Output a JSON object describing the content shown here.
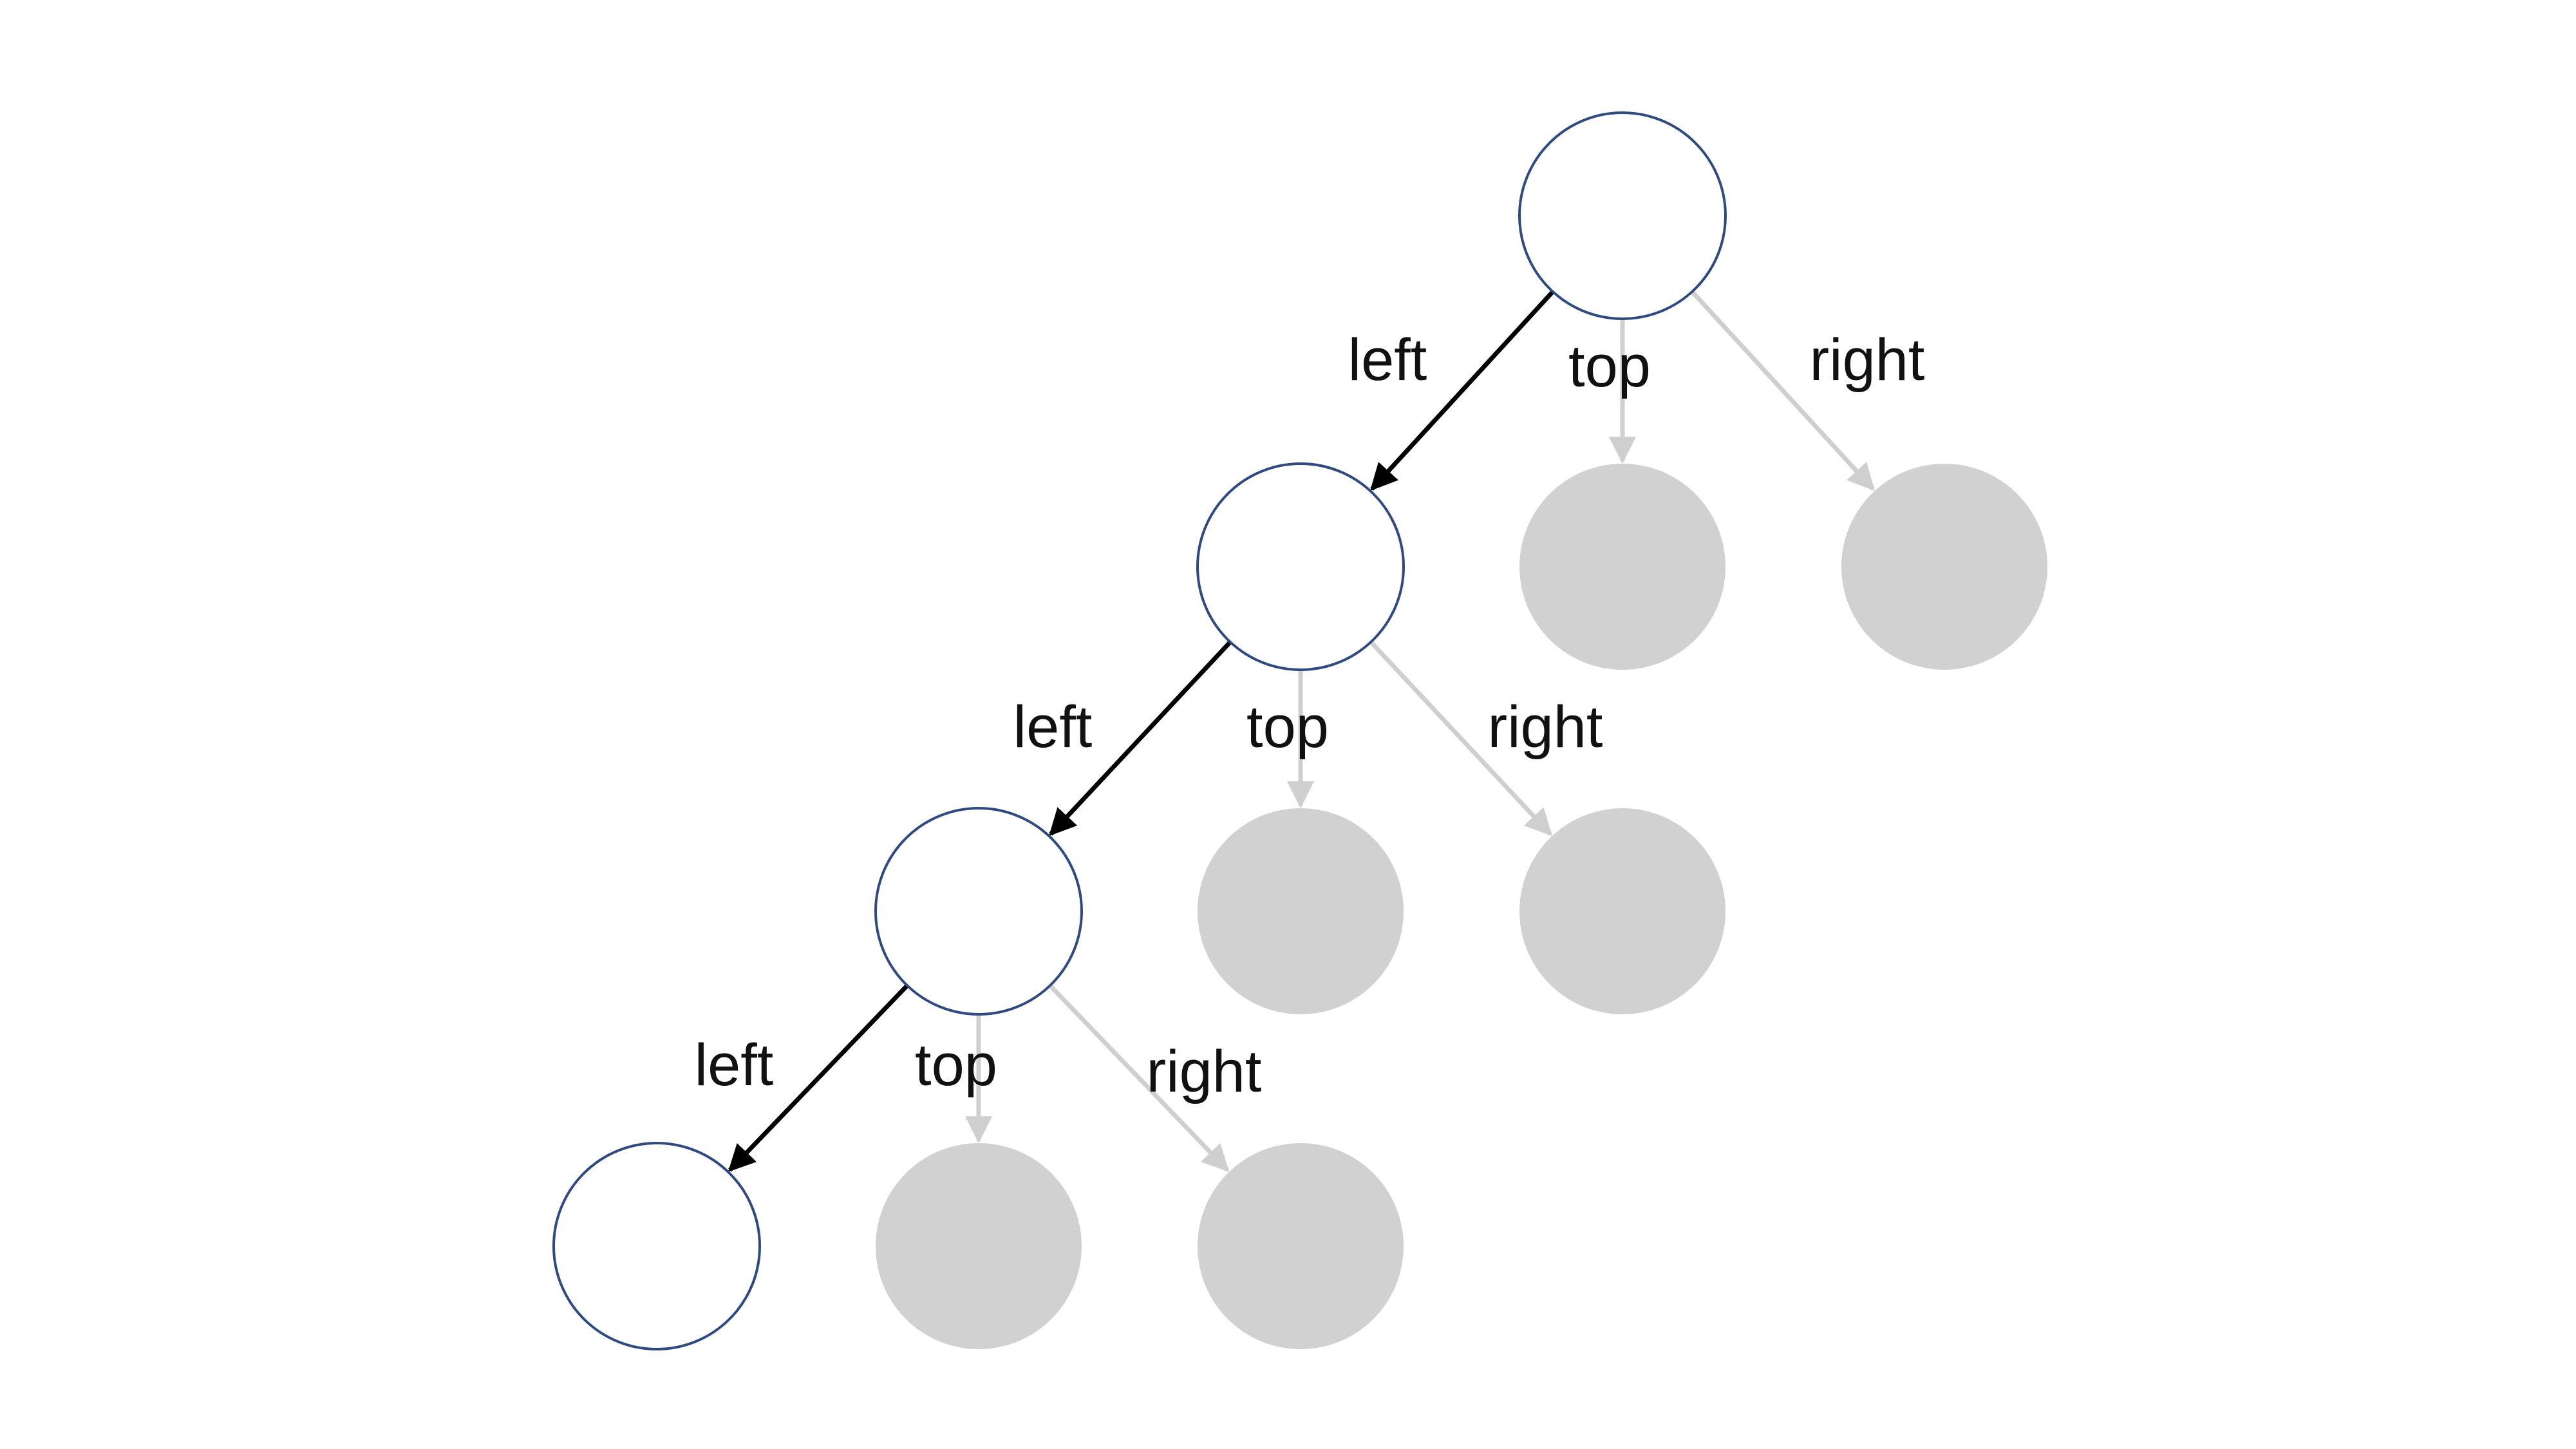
{
  "diagram": {
    "type": "search-tree",
    "colors": {
      "background": "#ffffff",
      "active_node_stroke": "#2f4a80",
      "active_node_fill": "#ffffff",
      "inactive_node_fill": "#d2d1d2",
      "active_edge": "#000000",
      "inactive_edge": "#cfcfcf",
      "label_text": "#111111"
    },
    "nodes": [
      {
        "id": "n0",
        "state": "active"
      },
      {
        "id": "n1",
        "state": "active"
      },
      {
        "id": "n2",
        "state": "inactive"
      },
      {
        "id": "n3",
        "state": "inactive"
      },
      {
        "id": "n4",
        "state": "active"
      },
      {
        "id": "n5",
        "state": "inactive"
      },
      {
        "id": "n6",
        "state": "inactive"
      },
      {
        "id": "n7",
        "state": "active"
      },
      {
        "id": "n8",
        "state": "inactive"
      },
      {
        "id": "n9",
        "state": "inactive"
      }
    ],
    "edges": [
      {
        "from": "n0",
        "to": "n1",
        "label": "left",
        "state": "active"
      },
      {
        "from": "n0",
        "to": "n2",
        "label": "top",
        "state": "inactive"
      },
      {
        "from": "n0",
        "to": "n3",
        "label": "right",
        "state": "inactive"
      },
      {
        "from": "n1",
        "to": "n4",
        "label": "left",
        "state": "active"
      },
      {
        "from": "n1",
        "to": "n5",
        "label": "top",
        "state": "inactive"
      },
      {
        "from": "n1",
        "to": "n6",
        "label": "right",
        "state": "inactive"
      },
      {
        "from": "n4",
        "to": "n7",
        "label": "left",
        "state": "active"
      },
      {
        "from": "n4",
        "to": "n8",
        "label": "top",
        "state": "inactive"
      },
      {
        "from": "n4",
        "to": "n9",
        "label": "right",
        "state": "inactive"
      }
    ]
  }
}
